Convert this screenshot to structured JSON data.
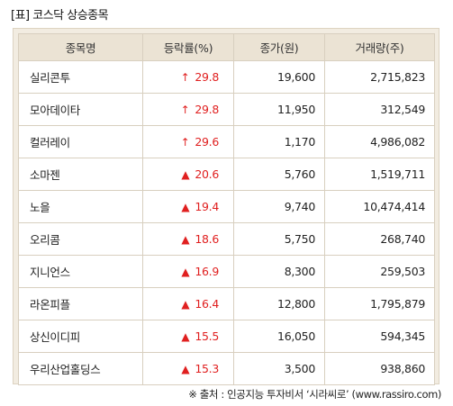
{
  "title": "[표] 코스닥 상승종목",
  "columns": [
    "종목명",
    "등락률(%)",
    "종가(원)",
    "거래량(주)"
  ],
  "rows": [
    {
      "name": "실리콘투",
      "marker": "↑",
      "marker_icon": "limit-up-arrow-icon",
      "rate": "29.8",
      "close": "19,600",
      "volume": "2,715,823"
    },
    {
      "name": "모아데이타",
      "marker": "↑",
      "marker_icon": "limit-up-arrow-icon",
      "rate": "29.8",
      "close": "11,950",
      "volume": "312,549"
    },
    {
      "name": "컬러레이",
      "marker": "↑",
      "marker_icon": "limit-up-arrow-icon",
      "rate": "29.6",
      "close": "1,170",
      "volume": "4,986,082"
    },
    {
      "name": "소마젠",
      "marker": "▲",
      "marker_icon": "up-triangle-icon",
      "rate": "20.6",
      "close": "5,760",
      "volume": "1,519,711"
    },
    {
      "name": "노을",
      "marker": "▲",
      "marker_icon": "up-triangle-icon",
      "rate": "19.4",
      "close": "9,740",
      "volume": "10,474,414"
    },
    {
      "name": "오리콤",
      "marker": "▲",
      "marker_icon": "up-triangle-icon",
      "rate": "18.6",
      "close": "5,750",
      "volume": "268,740"
    },
    {
      "name": "지니언스",
      "marker": "▲",
      "marker_icon": "up-triangle-icon",
      "rate": "16.9",
      "close": "8,300",
      "volume": "259,503"
    },
    {
      "name": "라온피플",
      "marker": "▲",
      "marker_icon": "up-triangle-icon",
      "rate": "16.4",
      "close": "12,800",
      "volume": "1,795,879"
    },
    {
      "name": "상신이디피",
      "marker": "▲",
      "marker_icon": "up-triangle-icon",
      "rate": "15.5",
      "close": "16,050",
      "volume": "594,345"
    },
    {
      "name": "우리산업홀딩스",
      "marker": "▲",
      "marker_icon": "up-triangle-icon",
      "rate": "15.3",
      "close": "3,500",
      "volume": "938,860"
    }
  ],
  "source": "※ 출처 : 인공지능 투자비서 ‘시라씨로’ (www.rassiro.com)",
  "colors": {
    "up": "#e02020",
    "header_bg": "#ebe3d4",
    "frame_bg": "#f2ece1"
  }
}
